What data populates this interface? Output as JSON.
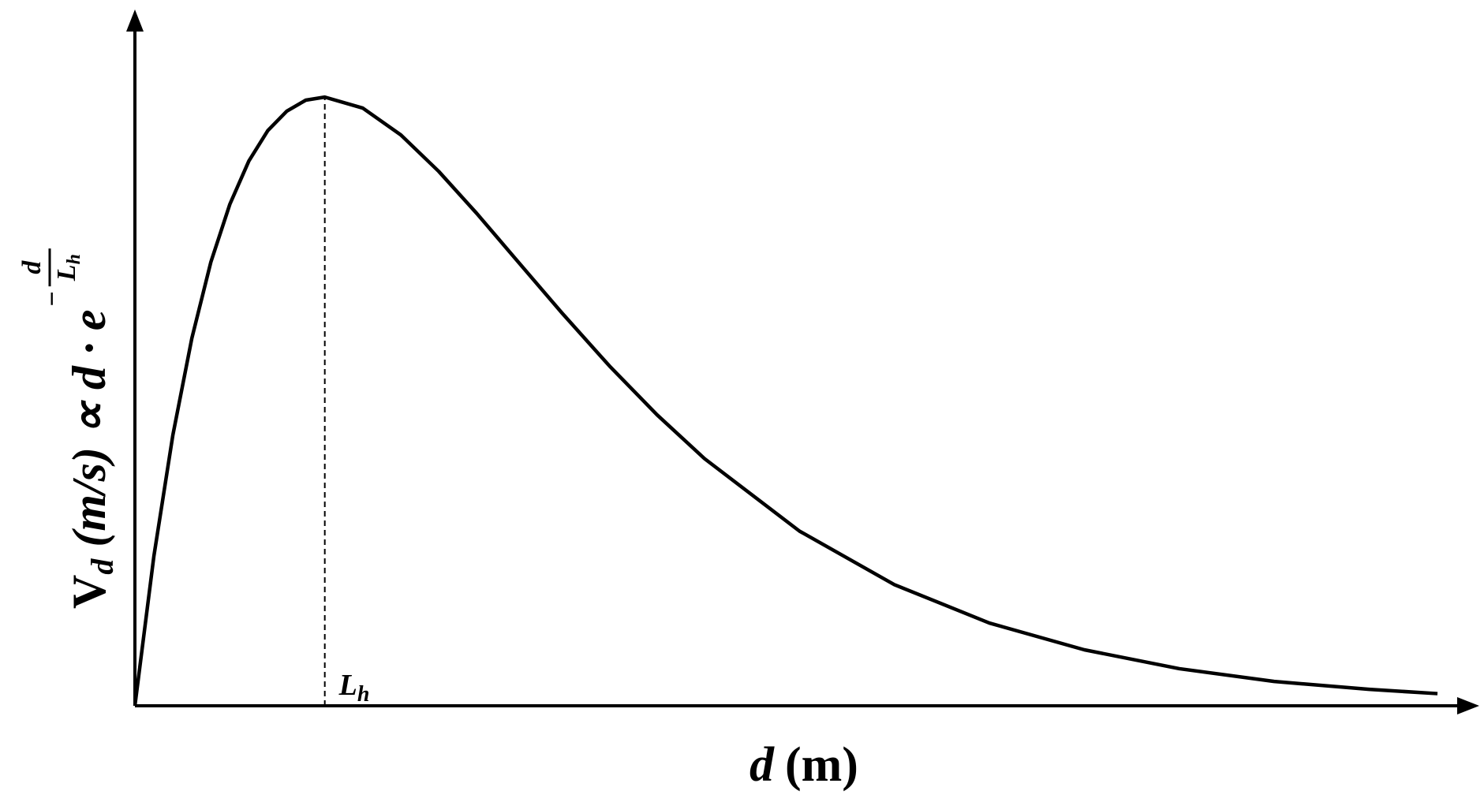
{
  "chart_data": {
    "type": "line",
    "x_label": {
      "var": "d",
      "unit": "(m)"
    },
    "y_label": {
      "main": "V",
      "main_sub": "d",
      "rest": " (m/s) ∝ d · e",
      "exp_sign": "−",
      "exp_num": "d",
      "exp_den": "L",
      "exp_den_sub": "h"
    },
    "annotation": {
      "x": 1,
      "text": "L",
      "sub": "h"
    },
    "x": [
      0,
      0.1,
      0.2,
      0.3,
      0.4,
      0.5,
      0.6,
      0.7,
      0.8,
      0.9,
      1.0,
      1.2,
      1.4,
      1.6,
      1.8,
      2.0,
      2.25,
      2.5,
      2.75,
      3.0,
      3.5,
      4.0,
      4.5,
      5.0,
      5.5,
      6.0,
      6.5,
      6.86
    ],
    "values": [
      0,
      0.246,
      0.445,
      0.604,
      0.729,
      0.824,
      0.895,
      0.945,
      0.977,
      0.995,
      1,
      0.982,
      0.938,
      0.878,
      0.809,
      0.736,
      0.645,
      0.558,
      0.478,
      0.406,
      0.287,
      0.199,
      0.136,
      0.092,
      0.061,
      0.04,
      0.027,
      0.02
    ],
    "color": "#000000",
    "xlim": [
      0,
      7.08
    ],
    "ylim": [
      0,
      1.144
    ]
  }
}
